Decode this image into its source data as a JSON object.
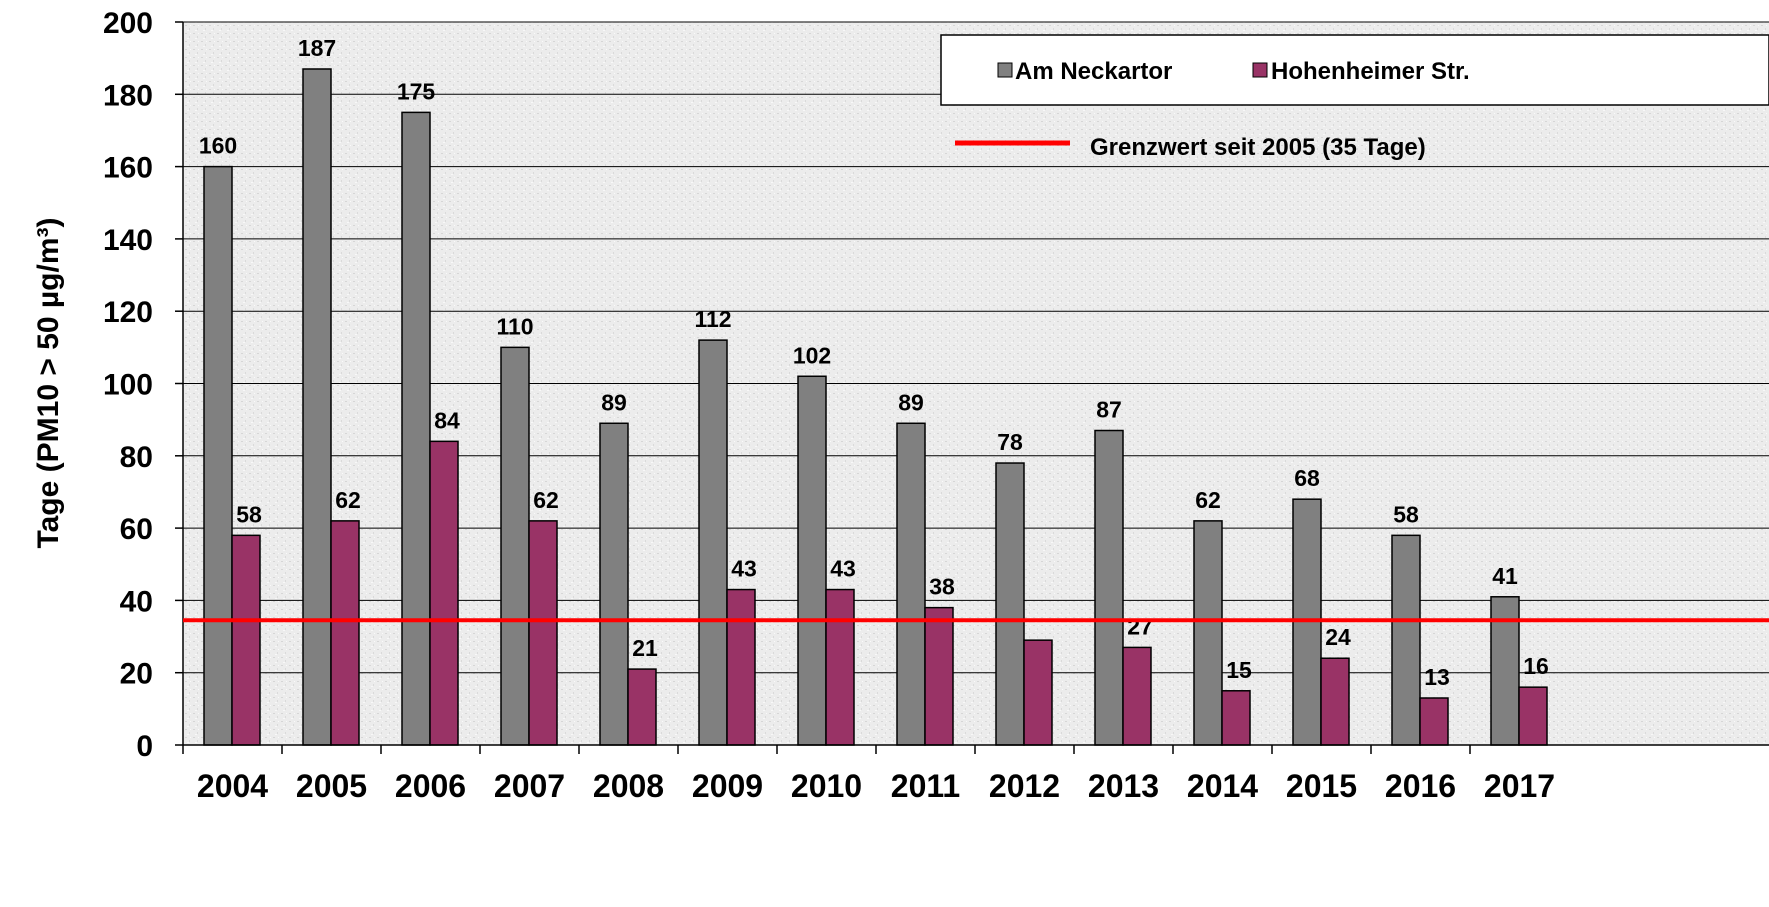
{
  "chart_data": {
    "type": "bar",
    "title": "",
    "xlabel": "",
    "ylabel": "Tage (PM10 > 50 µg/m³)",
    "ylim": [
      0,
      200
    ],
    "yticks": [
      0,
      20,
      40,
      60,
      80,
      100,
      120,
      140,
      160,
      180,
      200
    ],
    "grid": true,
    "categories": [
      "2004",
      "2005",
      "2006",
      "2007",
      "2008",
      "2009",
      "2010",
      "2011",
      "2012",
      "2013",
      "2014",
      "2015",
      "2016",
      "2017"
    ],
    "series": [
      {
        "name": "Am Neckartor",
        "color": "#808080",
        "values": [
          160,
          187,
          175,
          110,
          89,
          112,
          102,
          89,
          78,
          87,
          62,
          68,
          58,
          41
        ],
        "labels": [
          "160",
          "187",
          "175",
          "110",
          "89",
          "112",
          "102",
          "89",
          "78",
          "87",
          "62",
          "68",
          "58",
          "41"
        ]
      },
      {
        "name": "Hohenheimer Str.",
        "color": "#993366",
        "values": [
          58,
          62,
          84,
          62,
          21,
          43,
          43,
          38,
          29,
          27,
          15,
          24,
          13,
          16
        ],
        "labels": [
          "58",
          "62",
          "84",
          "62",
          "21",
          "43",
          "43",
          "38",
          "",
          "27",
          "15",
          "24",
          "13",
          "16"
        ]
      }
    ],
    "reference_line": {
      "name": "Grenzwert seit 2005 (35 Tage)",
      "value": 34.5,
      "color": "#ff0000"
    },
    "legend_position": "top-right"
  }
}
